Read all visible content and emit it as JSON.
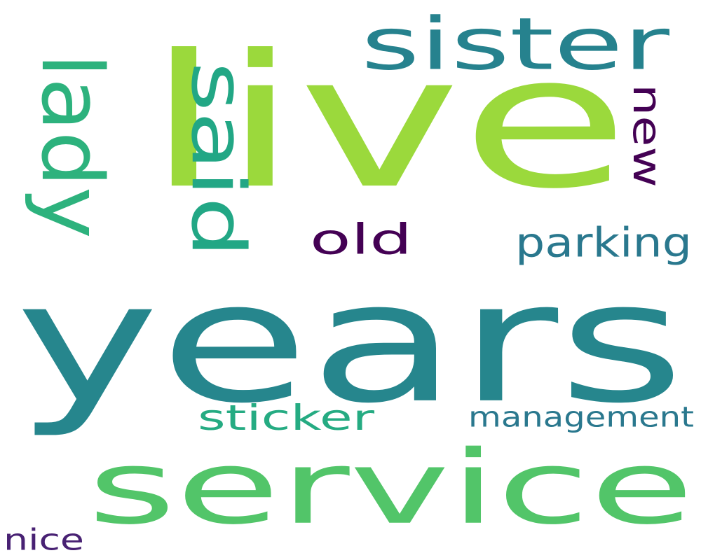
{
  "words": [
    {
      "text": "years",
      "color": "#26868d"
    },
    {
      "text": "live",
      "color": "#9bd93c"
    },
    {
      "text": "service",
      "color": "#52c569"
    },
    {
      "text": "sister",
      "color": "#26828e"
    },
    {
      "text": "said",
      "color": "#22a785"
    },
    {
      "text": "lady",
      "color": "#2db27d"
    },
    {
      "text": "new",
      "color": "#440154"
    },
    {
      "text": "old",
      "color": "#440154"
    },
    {
      "text": "parking",
      "color": "#2a788e"
    },
    {
      "text": "sticker",
      "color": "#25ab82"
    },
    {
      "text": "management",
      "color": "#2a788e"
    },
    {
      "text": "nice",
      "color": "#482173"
    }
  ]
}
